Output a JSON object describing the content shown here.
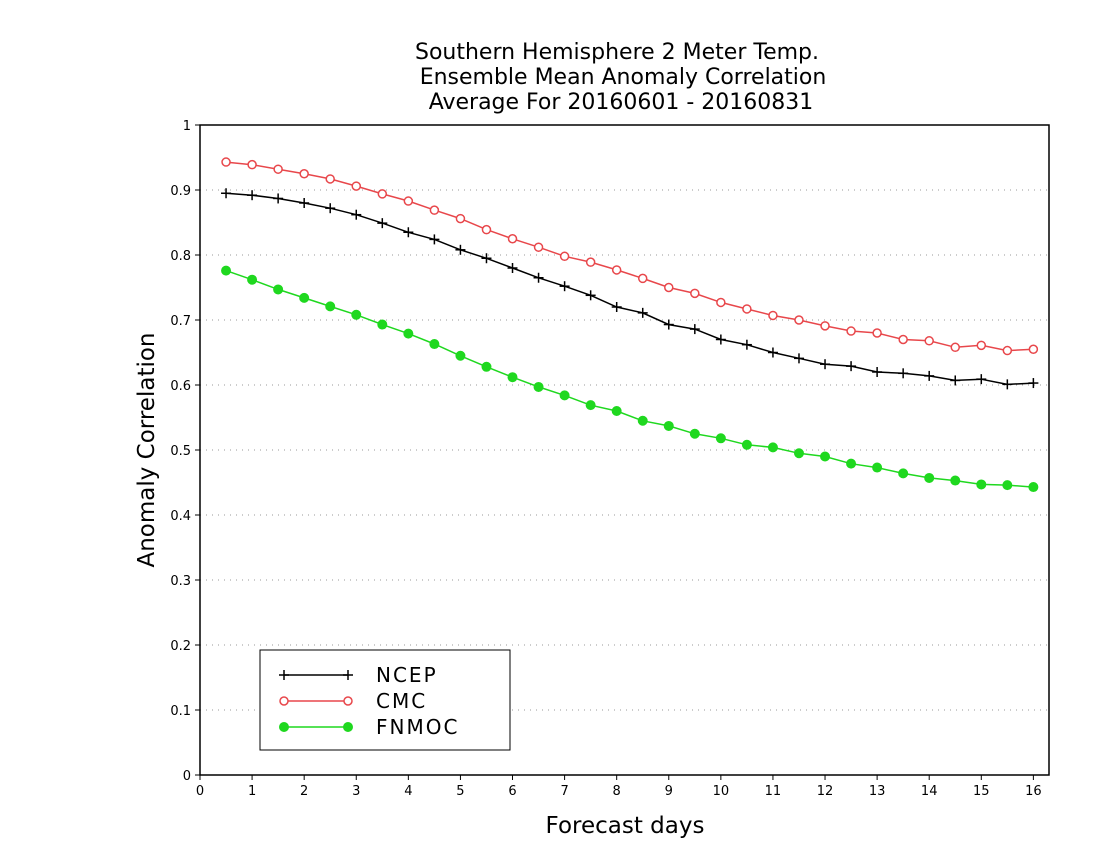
{
  "chart_data": {
    "type": "line",
    "title": [
      "Southern Hemisphere 2 Meter Temp.",
      "Ensemble Mean Anomaly Correlation",
      "Average For 20160601 - 20160831"
    ],
    "xlabel": "Forecast days",
    "ylabel": "Anomaly Correlation",
    "xlim": [
      0,
      16.3
    ],
    "ylim": [
      0,
      1
    ],
    "xticks": [
      "0",
      "1",
      "2",
      "3",
      "4",
      "5",
      "6",
      "7",
      "8",
      "9",
      "10",
      "11",
      "12",
      "13",
      "14",
      "15",
      "16"
    ],
    "yticks": [
      "0",
      "0.1",
      "0.2",
      "0.3",
      "0.4",
      "0.5",
      "0.6",
      "0.7",
      "0.8",
      "0.9",
      "1"
    ],
    "grid": "horizontal dotted",
    "legend_position": "bottom-left",
    "x": [
      0.5,
      1,
      1.5,
      2,
      2.5,
      3,
      3.5,
      4,
      4.5,
      5,
      5.5,
      6,
      6.5,
      7,
      7.5,
      8,
      8.5,
      9,
      9.5,
      10,
      10.5,
      11,
      11.5,
      12,
      12.5,
      13,
      13.5,
      14,
      14.5,
      15,
      15.5,
      16
    ],
    "series": [
      {
        "name": "NCEP",
        "color": "#000000",
        "marker": "plus",
        "values": [
          0.895,
          0.892,
          0.887,
          0.88,
          0.872,
          0.862,
          0.849,
          0.835,
          0.824,
          0.808,
          0.795,
          0.78,
          0.765,
          0.752,
          0.738,
          0.72,
          0.711,
          0.693,
          0.686,
          0.67,
          0.662,
          0.65,
          0.641,
          0.632,
          0.629,
          0.62,
          0.618,
          0.614,
          0.607,
          0.609,
          0.601,
          0.603
        ]
      },
      {
        "name": "CMC",
        "color": "#e8474b",
        "marker": "open-circle",
        "values": [
          0.943,
          0.939,
          0.932,
          0.925,
          0.917,
          0.906,
          0.894,
          0.883,
          0.869,
          0.856,
          0.839,
          0.825,
          0.812,
          0.798,
          0.789,
          0.777,
          0.764,
          0.75,
          0.741,
          0.727,
          0.717,
          0.707,
          0.7,
          0.691,
          0.683,
          0.68,
          0.67,
          0.668,
          0.658,
          0.661,
          0.653,
          0.655
        ]
      },
      {
        "name": "FNMOC",
        "color": "#1fd81f",
        "marker": "filled-circle",
        "values": [
          0.776,
          0.762,
          0.747,
          0.734,
          0.721,
          0.708,
          0.693,
          0.679,
          0.663,
          0.645,
          0.628,
          0.612,
          0.597,
          0.584,
          0.569,
          0.56,
          0.545,
          0.537,
          0.525,
          0.518,
          0.508,
          0.504,
          0.495,
          0.49,
          0.479,
          0.473,
          0.464,
          0.457,
          0.453,
          0.447,
          0.446,
          0.443
        ]
      }
    ]
  }
}
